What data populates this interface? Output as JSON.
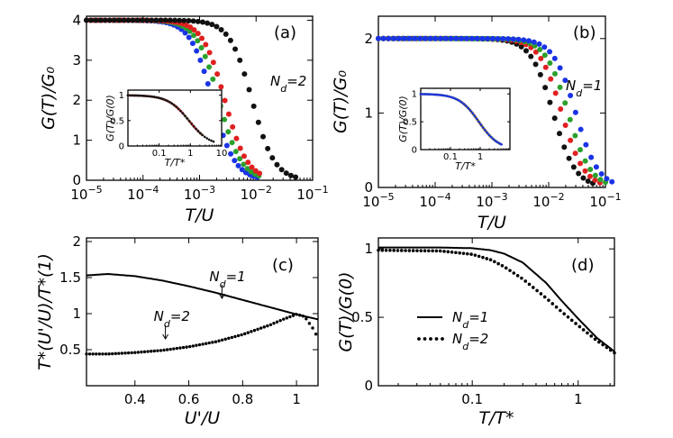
{
  "chart_data": [
    {
      "panel": "a",
      "type": "scatter",
      "panel_label": "(a)",
      "xlabel": "T/U",
      "ylabel": "G(T)/G₀",
      "xscale": "log",
      "xlim": [
        1e-05,
        0.1
      ],
      "ylim": [
        0,
        4.1
      ],
      "xticks": [
        1e-05,
        0.0001,
        0.001,
        0.01,
        0.1
      ],
      "xtick_labels": [
        [
          "10",
          "−5"
        ],
        [
          "10",
          "−4"
        ],
        [
          "10",
          "−3"
        ],
        [
          "10",
          "−2"
        ],
        [
          "10",
          "−1"
        ]
      ],
      "yticks": [
        0,
        1,
        2,
        3,
        4
      ],
      "ytick_labels": [
        "0",
        "1",
        "2",
        "3",
        "4"
      ],
      "annotation": {
        "base": "N",
        "sub": "d",
        "rest": "=2"
      },
      "plateau": 4,
      "series": [
        {
          "color": "#1a33e6",
          "half_x": 0.0017,
          "x_end": 0.0105
        },
        {
          "color": "#2ca02c",
          "half_x": 0.0022,
          "x_end": 0.0112
        },
        {
          "color": "#e02020",
          "half_x": 0.0028,
          "x_end": 0.0115
        },
        {
          "color": "#111111",
          "half_x": 0.0085,
          "x_end": 0.05
        }
      ],
      "inset": {
        "xlabel": "T/T*",
        "ylabel": "G(T)/G(0)",
        "xscale": "log",
        "xlim": [
          0.01,
          10
        ],
        "ylim": [
          0,
          1.1
        ],
        "xticks": [
          0.1,
          1,
          10
        ],
        "xtick_labels": [
          "0.1",
          "1",
          "10"
        ],
        "yticks": [
          0,
          0.5,
          1
        ],
        "ytick_labels": [
          "0",
          "0.5",
          "1"
        ],
        "series": [
          {
            "color": "#1a33e6",
            "x_end": 2.2
          },
          {
            "color": "#2ca02c",
            "x_end": 2.3
          },
          {
            "color": "#e02020",
            "x_end": 2.4
          },
          {
            "color": "#111111",
            "x_end": 5.5
          }
        ]
      }
    },
    {
      "panel": "b",
      "type": "scatter",
      "panel_label": "(b)",
      "xlabel": "T/U",
      "ylabel": "G(T)/G₀",
      "xscale": "log",
      "xlim": [
        1e-05,
        0.1
      ],
      "ylim": [
        0,
        2.3
      ],
      "xticks": [
        1e-05,
        0.0001,
        0.001,
        0.01,
        0.1
      ],
      "xtick_labels": [
        [
          "10",
          "−5"
        ],
        [
          "10",
          "−4"
        ],
        [
          "10",
          "−3"
        ],
        [
          "10",
          "−2"
        ],
        [
          "10",
          "−1"
        ]
      ],
      "yticks": [
        0,
        1,
        2
      ],
      "ytick_labels": [
        "0",
        "1",
        "2"
      ],
      "annotation": {
        "base": "N",
        "sub": "d",
        "rest": "=1"
      },
      "plateau": 2,
      "series": [
        {
          "color": "#111111",
          "half_x": 0.012,
          "x_end": 0.06
        },
        {
          "color": "#e02020",
          "half_x": 0.017,
          "x_end": 0.08
        },
        {
          "color": "#2ca02c",
          "half_x": 0.022,
          "x_end": 0.1
        },
        {
          "color": "#1a33e6",
          "half_x": 0.03,
          "x_end": 0.13
        }
      ],
      "inset": {
        "xlabel": "T/T*",
        "ylabel": "G(T)/G(0)",
        "xscale": "log",
        "xlim": [
          0.01,
          10
        ],
        "ylim": [
          0,
          1.1
        ],
        "xticks": [
          0.1,
          1
        ],
        "xtick_labels": [
          "0.1",
          "1"
        ],
        "yticks": [
          0,
          0.5,
          1
        ],
        "ytick_labels": [
          "0",
          "0.5",
          "1"
        ],
        "series": [
          {
            "color": "#111111",
            "x_end": 4.5
          },
          {
            "color": "#e02020",
            "x_end": 4.8
          },
          {
            "color": "#2ca02c",
            "x_end": 5.0
          },
          {
            "color": "#1a33e6",
            "x_end": 5.2
          }
        ]
      }
    },
    {
      "panel": "c",
      "type": "line",
      "panel_label": "(c)",
      "xlabel": "U'/U",
      "ylabel": "T*(U'/U)/T*(1)",
      "xlim": [
        0.22,
        1.08
      ],
      "ylim": [
        0,
        2.05
      ],
      "xticks": [
        0.4,
        0.6,
        0.8,
        1
      ],
      "xtick_labels": [
        "0.4",
        "0.6",
        "0.8",
        "1"
      ],
      "yticks": [
        0.5,
        1,
        1.5,
        2
      ],
      "ytick_labels": [
        "0.5",
        "1",
        "1.5",
        "2"
      ],
      "annotations": [
        {
          "base": "N",
          "sub": "d",
          "rest": "=1",
          "x": 0.75,
          "y": 1.25
        },
        {
          "base": "N",
          "sub": "d",
          "rest": "=2",
          "x": 0.55,
          "y": 0.5
        }
      ],
      "series": [
        {
          "style": "solid",
          "x": [
            0.22,
            0.3,
            0.4,
            0.5,
            0.6,
            0.7,
            0.8,
            0.9,
            1.0,
            1.08
          ],
          "y": [
            1.53,
            1.55,
            1.52,
            1.46,
            1.38,
            1.29,
            1.19,
            1.09,
            0.99,
            0.92
          ]
        },
        {
          "style": "dotted",
          "x": [
            0.22,
            0.3,
            0.4,
            0.5,
            0.6,
            0.7,
            0.8,
            0.9,
            0.95,
            1.0,
            1.03,
            1.06,
            1.08
          ],
          "y": [
            0.44,
            0.44,
            0.46,
            0.49,
            0.54,
            0.61,
            0.71,
            0.84,
            0.92,
            0.99,
            0.96,
            0.8,
            0.66
          ]
        }
      ]
    },
    {
      "panel": "d",
      "type": "line",
      "panel_label": "(d)",
      "xlabel": "T/T*",
      "ylabel": "G(T)/G(0)",
      "xscale": "log",
      "xlim": [
        0.013,
        2.2
      ],
      "ylim": [
        0,
        1.08
      ],
      "xticks": [
        0.1,
        1
      ],
      "xtick_labels": [
        "0.1",
        "1"
      ],
      "yticks": [
        0,
        0.5,
        1
      ],
      "ytick_labels": [
        "0",
        "0.5",
        "1"
      ],
      "legend_position": "center-left",
      "legend": [
        {
          "style": "solid",
          "base": "N",
          "sub": "d",
          "rest": "=1"
        },
        {
          "style": "dotted",
          "base": "N",
          "sub": "d",
          "rest": "=2"
        }
      ],
      "series": [
        {
          "style": "solid",
          "x": [
            0.013,
            0.05,
            0.1,
            0.15,
            0.2,
            0.3,
            0.5,
            0.7,
            1.0,
            1.5,
            2.2
          ],
          "y": [
            1.01,
            1.01,
            1.005,
            0.99,
            0.965,
            0.9,
            0.75,
            0.62,
            0.49,
            0.35,
            0.25
          ]
        },
        {
          "style": "dotted",
          "x": [
            0.013,
            0.05,
            0.1,
            0.15,
            0.2,
            0.3,
            0.5,
            0.7,
            1.0,
            1.5,
            2.2
          ],
          "y": [
            0.99,
            0.985,
            0.96,
            0.92,
            0.87,
            0.78,
            0.64,
            0.54,
            0.44,
            0.33,
            0.24
          ]
        }
      ]
    }
  ]
}
